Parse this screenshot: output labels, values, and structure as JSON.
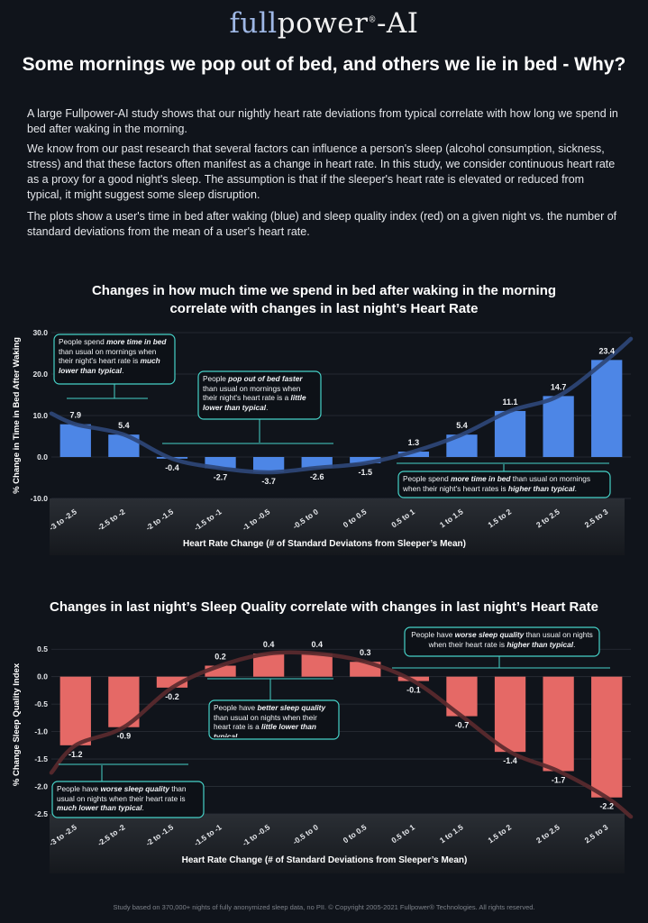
{
  "logo": {
    "part1": "full",
    "part2": "power",
    "reg": "®",
    "part3": "-AI"
  },
  "headline": "Some mornings we pop out of bed, and others we lie in bed - Why?",
  "intro": [
    "A large Fullpower-AI study shows that our nightly heart rate deviations from typical correlate with how long we spend in bed after waking in the morning.",
    "We know from our past research that several factors can influence a person's sleep (alcohol consumption, sickness, stress) and that these factors often manifest as a change in heart rate.  In this study, we consider continuous heart rate as a proxy for a good night's sleep.  The assumption is that if the sleeper's heart rate is elevated or reduced from typical, it might suggest some sleep disruption.",
    "The plots show a user's time in bed after waking (blue) and sleep quality index (red) on a given night vs. the number of standard deviations from the mean of a user's heart rate."
  ],
  "chart1_title": {
    "line1": "Changes in how much time we spend in bed after waking in the morning",
    "line2": "correlate with changes in last night’s Heart Rate"
  },
  "chart2_title": "Changes in last night’s Sleep Quality correlate with changes in last night’s  Heart Rate",
  "footer": "Study based on 370,000+ nights of fully anonymized sleep data, no PII. © Copyright 2005-2021 Fullpower® Technologies. All rights reserved.",
  "colors": {
    "blue_bar": "#4d86e6",
    "blue_curve": "#2e4777",
    "red_bar": "#e56966",
    "red_curve": "#5a2a2e",
    "callout_border": "#46d2c8"
  },
  "chart_data": [
    {
      "type": "bar",
      "title": "Changes in how much time we spend in bed after waking in the morning correlate with changes in last night’s Heart Rate",
      "categories": [
        "-3 to -2.5",
        "-2.5 to -2",
        "-2 to -1.5",
        "-1.5 to -1",
        "-1 to -0.5",
        "-0.5 to 0",
        "0 to 0.5",
        "0.5 to 1",
        "1 to 1.5",
        "1.5 to 2",
        "2 to 2.5",
        "2.5 to 3"
      ],
      "values": [
        7.9,
        5.4,
        -0.4,
        -2.7,
        -3.7,
        -2.6,
        -1.5,
        1.3,
        5.4,
        11.1,
        14.7,
        23.4
      ],
      "value_labels": [
        "7.9",
        "5.4",
        "-0.4",
        "-2.7",
        "-3.7",
        "-2.6",
        "-1.5",
        "1.3",
        "5.4",
        "11.1",
        "14.7",
        "23.4"
      ],
      "trend_start": 10.5,
      "trend_end": 28.5,
      "ylim": [
        -10,
        30
      ],
      "yticks": [
        "30.0",
        "20.0",
        "10.0",
        "0.0",
        "-10.0"
      ],
      "ytick_values": [
        30,
        20,
        10,
        0,
        -10
      ],
      "xlabel": "Heart Rate Change (# of Standard Deviatons from Sleeper’s Mean)",
      "ylabel": "% Change in Time in Bed After Waking",
      "callouts": [
        {
          "text": "People spend <b><i>more time in bed</i></b> than usual on mornings when their night's heart rate is <b><i>much lower than typical</i></b>."
        },
        {
          "text": "People <b><i>pop out of bed faster</i></b> than usual on mornings when their night's  heart rate is a <b><i>little lower than typical</i></b>."
        },
        {
          "text": "People spend <b><i>more time in bed</i></b> than usual on mornings when their night's heart rates is <b><i>higher than typical</i></b>."
        }
      ]
    },
    {
      "type": "bar",
      "title": "Changes in last night’s Sleep Quality correlate with changes in last night’s  Heart Rate",
      "categories": [
        "-3 to -2.5",
        "-2.5 to -2",
        "-2 to -1.5",
        "-1.5 to -1",
        "-1 to -0.5",
        "-0.5 to 0",
        "0 to 0.5",
        "0.5 to 1",
        "1 to 1.5",
        "1.5 to 2",
        "2 to 2.5",
        "2.5 to 3"
      ],
      "values": [
        -1.25,
        -0.92,
        -0.2,
        0.2,
        0.42,
        0.42,
        0.27,
        -0.08,
        -0.72,
        -1.37,
        -1.72,
        -2.2
      ],
      "value_labels": [
        "-1.2",
        "-0.9",
        "-0.2",
        "0.2",
        "0.4",
        "0.4",
        "0.3",
        "-0.1",
        "-0.7",
        "-1.4",
        "-1.7",
        "-2.2"
      ],
      "trend_start": -1.75,
      "trend_end": -2.55,
      "ylim": [
        -2.5,
        0.75
      ],
      "yticks": [
        "0.5",
        "0.0",
        "-0.5",
        "-1.0",
        "-1.5",
        "-2.0",
        "-2.5"
      ],
      "ytick_values": [
        0.5,
        0,
        -0.5,
        -1,
        -1.5,
        -2,
        -2.5
      ],
      "xlabel": "Heart Rate Change (# of Standard Deviations from Sleeper’s Mean)",
      "ylabel": "% Change Sleep Quality Index",
      "callouts": [
        {
          "text": "People have <b><i>better sleep quality</i></b> than usual on nights when their heart rate is a <b><i>little lower than typical</i></b>."
        },
        {
          "text": "People have <b><i>worse sleep quality</i></b> than usual on nights when their heart rate is <b><i>higher than typical</i></b>."
        },
        {
          "text": "People have <b><i>worse sleep quality</i></b> than usual on nights when their heart rate is <b><i>much lower than typical</i></b>."
        }
      ]
    }
  ]
}
